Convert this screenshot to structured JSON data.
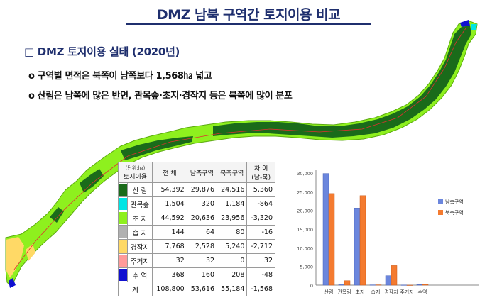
{
  "title": "DMZ 남북 구역간 토지이용 비교",
  "heading": "□ DMZ 토지이용 실태 (2020년)",
  "bullets": [
    "o 구역별 면적은 북쪽이 남쪽보다 1,568㏊ 넓고",
    "o 산림은 남쪽에 많은 반면, 관목숲·초지·경작지 등은 북쪽에 많이 분포"
  ],
  "colors": {
    "title": "#1f2f6e",
    "forest": "#1a6b1a",
    "shrub": "#00e5e5",
    "grass": "#8ef01e",
    "wet": "#b0b0b0",
    "crop": "#ffd966",
    "resid": "#ff9a9a",
    "water": "#1010d0",
    "south_bar": "#6b86dd",
    "north_bar": "#f47b30"
  },
  "table": {
    "unit": "(단위:㏊)",
    "header": [
      "토지이용",
      "전 체",
      "남측구역",
      "북측구역",
      "차 이",
      "(남-북)"
    ],
    "rows": [
      {
        "label": "산 림",
        "swatch": "#1a6b1a",
        "total": "54,392",
        "south": "29,876",
        "north": "24,516",
        "diff": "5,360"
      },
      {
        "label": "관목숲",
        "swatch": "#00e5e5",
        "total": "1,504",
        "south": "320",
        "north": "1,184",
        "diff": "-864"
      },
      {
        "label": "초 지",
        "swatch": "#8ef01e",
        "total": "44,592",
        "south": "20,636",
        "north": "23,956",
        "diff": "-3,320"
      },
      {
        "label": "습 지",
        "swatch": "#b0b0b0",
        "total": "144",
        "south": "64",
        "north": "80",
        "diff": "-16"
      },
      {
        "label": "경작지",
        "swatch": "#ffd966",
        "total": "7,768",
        "south": "2,528",
        "north": "5,240",
        "diff": "-2,712"
      },
      {
        "label": "주거지",
        "swatch": "#ff9a9a",
        "total": "32",
        "south": "32",
        "north": "0",
        "diff": "32"
      },
      {
        "label": "수 역",
        "swatch": "#1010d0",
        "total": "368",
        "south": "160",
        "north": "208",
        "diff": "-48"
      },
      {
        "label": "계",
        "swatch": "",
        "total": "108,800",
        "south": "53,616",
        "north": "55,184",
        "diff": "-1,568"
      }
    ]
  },
  "chart_data": {
    "type": "bar",
    "categories": [
      "산림",
      "관목림",
      "초지",
      "습지",
      "경작지",
      "주거지",
      "수역"
    ],
    "series": [
      {
        "name": "남측구역",
        "values": [
          29876,
          320,
          20636,
          64,
          2528,
          32,
          160
        ]
      },
      {
        "name": "북측구역",
        "values": [
          24516,
          1184,
          23956,
          80,
          5240,
          0,
          208
        ]
      }
    ],
    "yticks": [
      "0",
      "5,000",
      "10,000",
      "15,000",
      "20,000",
      "25,000",
      "30,000"
    ],
    "ylim": [
      0,
      30000
    ],
    "legend": "right",
    "grid": false
  }
}
